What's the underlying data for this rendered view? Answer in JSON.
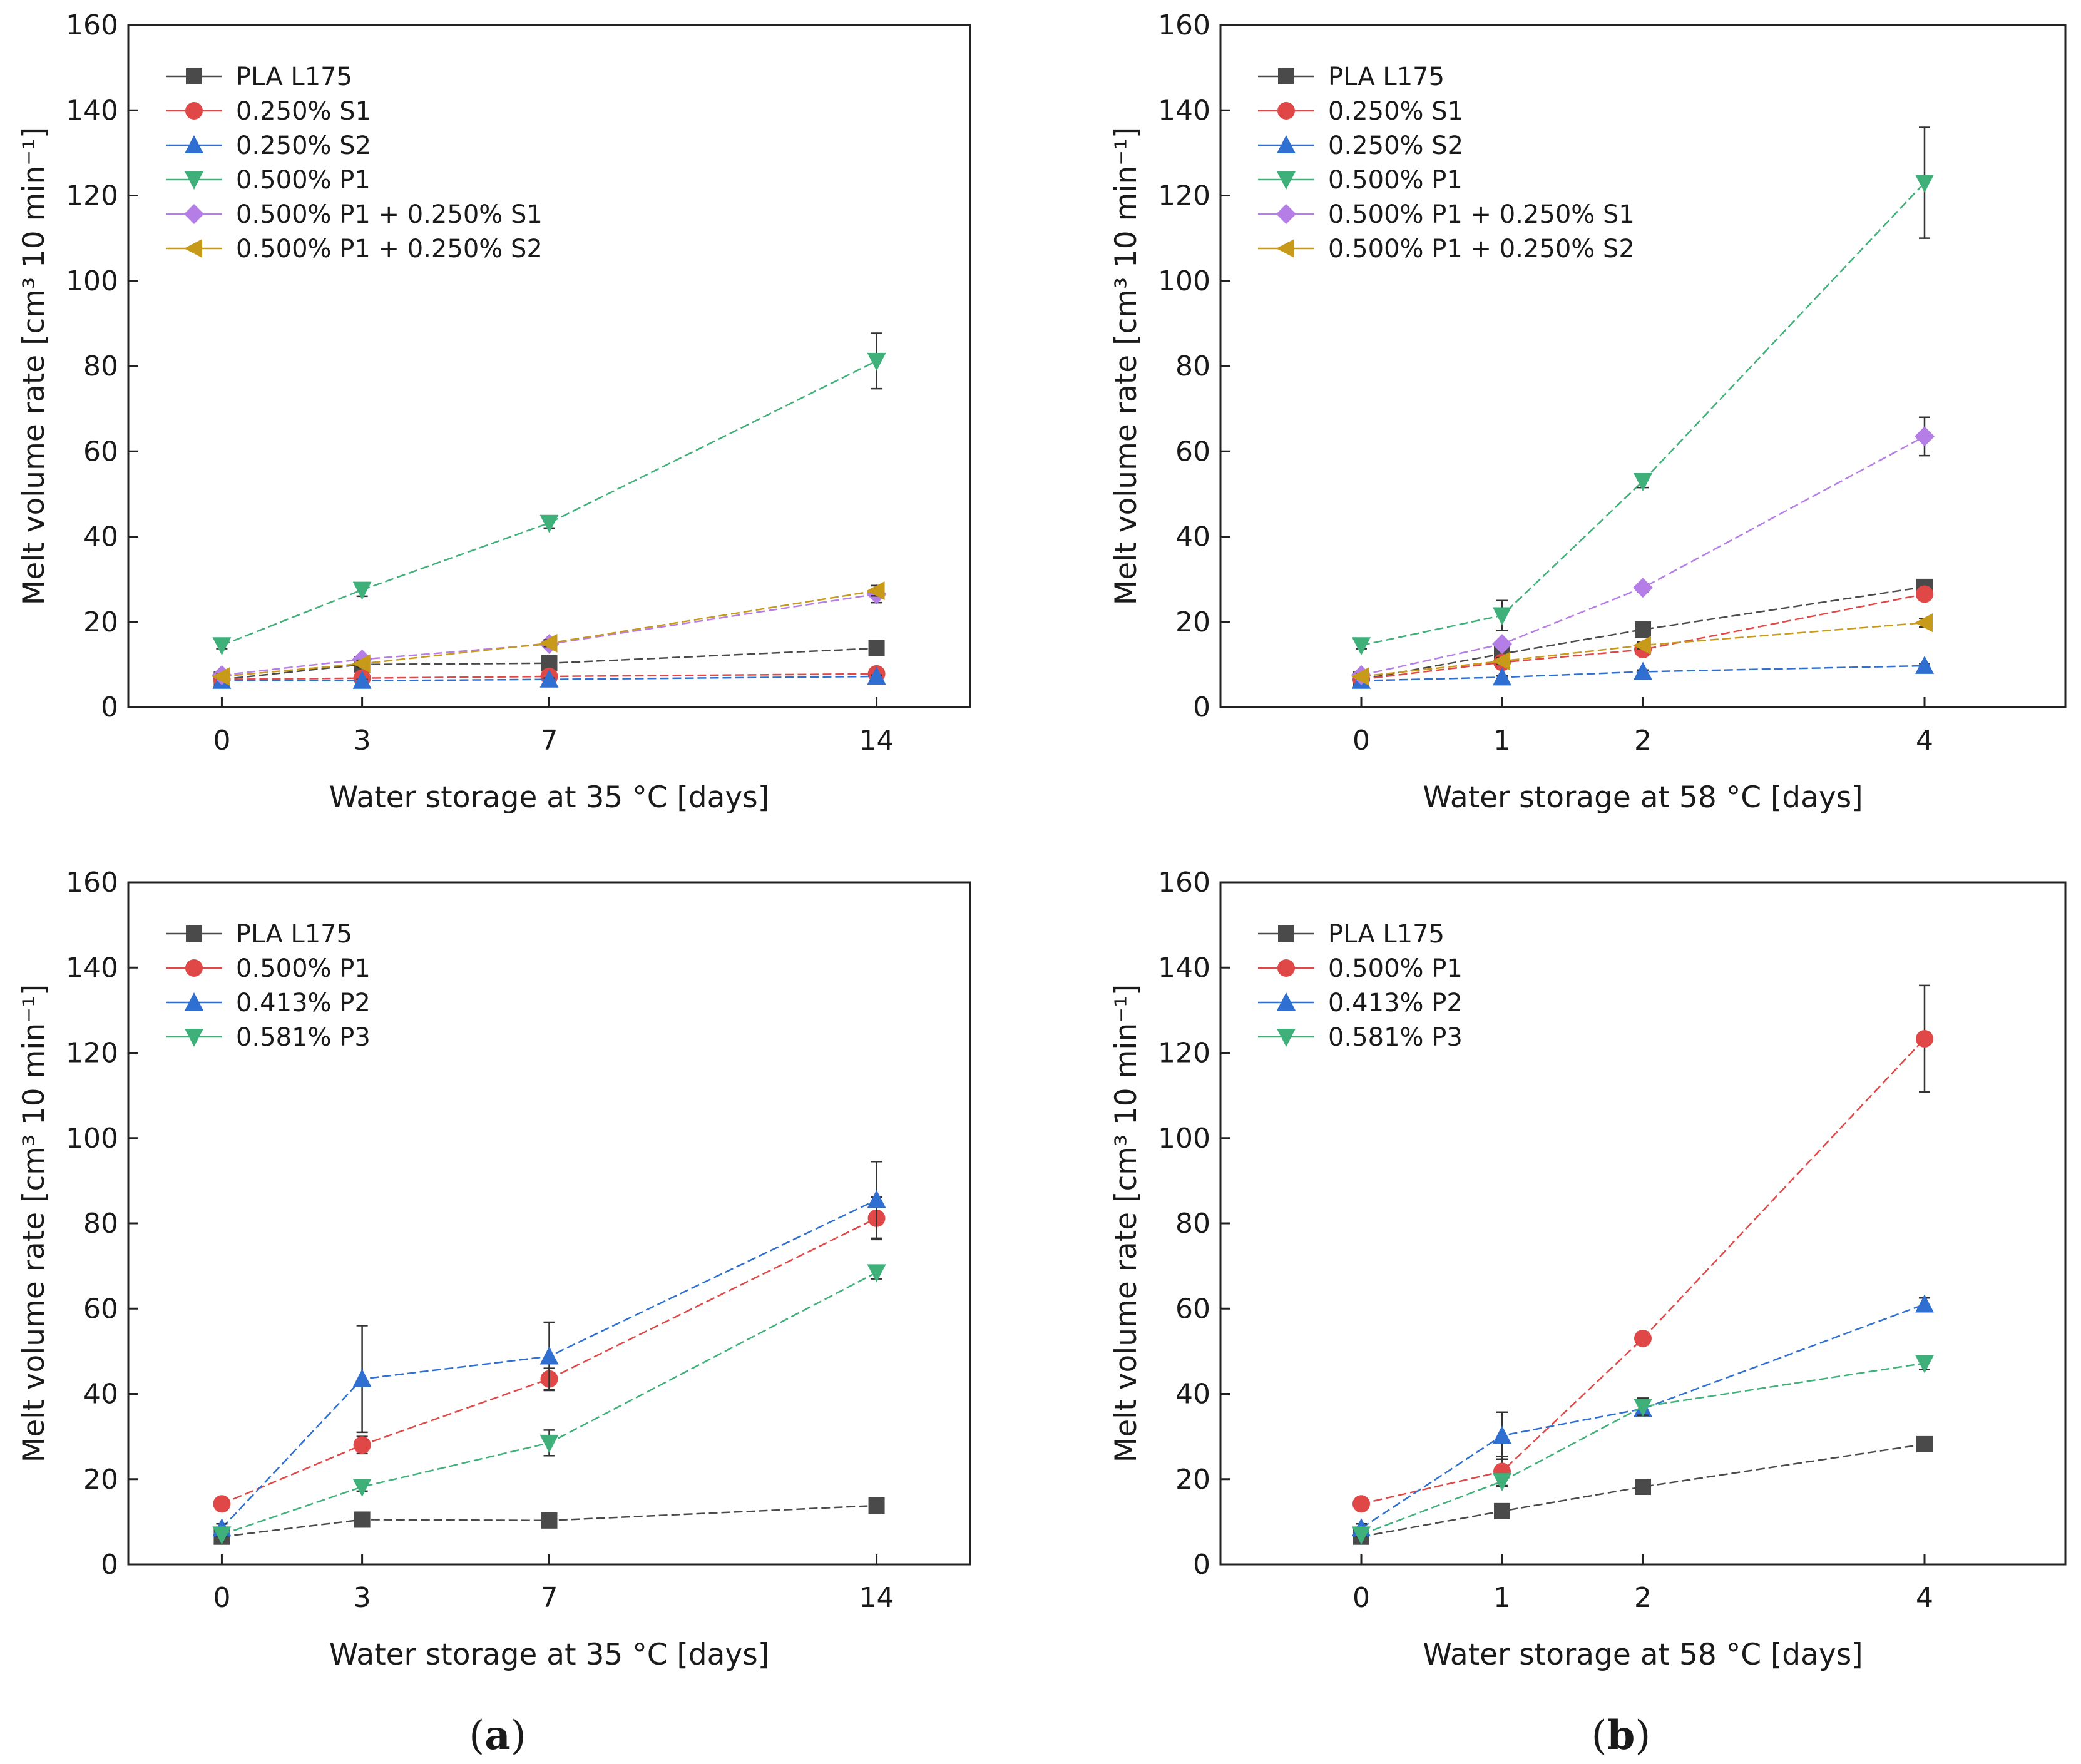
{
  "panel_labels": [
    {
      "prefix": "(",
      "letter": "a",
      "suffix": ")"
    },
    {
      "prefix": "(",
      "letter": "b",
      "suffix": ")"
    }
  ],
  "chart_data": [
    {
      "type": "line",
      "panel": "a-top",
      "xlabel": "Water storage at 35 °C [days]",
      "ylabel": "Melt volume rate [cm³ 10 min⁻¹]",
      "x": [
        0,
        3,
        7,
        14
      ],
      "x_tick_labels": [
        "0",
        "3",
        "7",
        "14"
      ],
      "xlim": [
        -2,
        16
      ],
      "ylim": [
        0,
        160
      ],
      "y_ticks": [
        0,
        20,
        40,
        60,
        80,
        100,
        120,
        140,
        160
      ],
      "legend_position": "top-left",
      "series": [
        {
          "name": "PLA L175",
          "marker": "square",
          "color": "#4a4a4a",
          "values": [
            6.5,
            10,
            10.3,
            13.8
          ],
          "errors": [
            0.5,
            0.8,
            0.8,
            0.8
          ]
        },
        {
          "name": "0.250% S1",
          "marker": "circle",
          "color": "#e04848",
          "values": [
            6.5,
            6.8,
            7.2,
            7.8
          ],
          "errors": [
            0.3,
            0.3,
            0.3,
            0.3
          ]
        },
        {
          "name": "0.250% S2",
          "marker": "triangle-up",
          "color": "#2e6fd1",
          "values": [
            6.2,
            6.2,
            6.5,
            7.2
          ],
          "errors": [
            0.3,
            0.3,
            0.3,
            0.3
          ]
        },
        {
          "name": "0.500% P1",
          "marker": "triangle-down",
          "color": "#3fb079",
          "values": [
            14.5,
            27.5,
            43.2,
            81.2
          ],
          "errors": [
            0.8,
            1.5,
            1.2,
            6.5
          ]
        },
        {
          "name": "0.500% P1 + 0.250% S1",
          "marker": "diamond",
          "color": "#b57ee6",
          "values": [
            7.5,
            11.2,
            14.8,
            26.5
          ],
          "errors": [
            0.5,
            0.8,
            0.8,
            2.0
          ]
        },
        {
          "name": "0.500% P1 + 0.250% S2",
          "marker": "triangle-left",
          "color": "#c89a1a",
          "values": [
            7.2,
            10.2,
            15.0,
            27.3
          ],
          "errors": [
            0.5,
            0.8,
            0.8,
            1.2
          ]
        }
      ]
    },
    {
      "type": "line",
      "panel": "b-top",
      "xlabel": "Water storage at 58 °C [days]",
      "ylabel": "Melt volume rate [cm³ 10 min⁻¹]",
      "x": [
        0,
        1,
        2,
        4
      ],
      "x_tick_labels": [
        "0",
        "1",
        "2",
        "4"
      ],
      "xlim": [
        -1,
        5
      ],
      "ylim": [
        0,
        160
      ],
      "y_ticks": [
        0,
        20,
        40,
        60,
        80,
        100,
        120,
        140,
        160
      ],
      "legend_position": "top-left",
      "series": [
        {
          "name": "PLA L175",
          "marker": "square",
          "color": "#4a4a4a",
          "values": [
            6.5,
            12.5,
            18.2,
            28.2
          ],
          "errors": [
            0.5,
            0.8,
            1.0,
            1.2
          ]
        },
        {
          "name": "0.250% S1",
          "marker": "circle",
          "color": "#e04848",
          "values": [
            6.5,
            10.5,
            13.5,
            26.5
          ],
          "errors": [
            0.3,
            0.6,
            0.8,
            1.5
          ]
        },
        {
          "name": "0.250% S2",
          "marker": "triangle-up",
          "color": "#2e6fd1",
          "values": [
            6.2,
            7.0,
            8.3,
            9.7
          ],
          "errors": [
            0.3,
            0.3,
            0.4,
            0.5
          ]
        },
        {
          "name": "0.500% P1",
          "marker": "triangle-down",
          "color": "#3fb079",
          "values": [
            14.5,
            21.5,
            53.0,
            123.0
          ],
          "errors": [
            0.8,
            3.5,
            1.5,
            13.0
          ]
        },
        {
          "name": "0.500% P1 + 0.250% S1",
          "marker": "diamond",
          "color": "#b57ee6",
          "values": [
            7.5,
            14.8,
            28.0,
            63.5
          ],
          "errors": [
            0.5,
            0.8,
            1.0,
            4.5
          ]
        },
        {
          "name": "0.500% P1 + 0.250% S2",
          "marker": "triangle-left",
          "color": "#c89a1a",
          "values": [
            7.2,
            10.8,
            14.5,
            19.8
          ],
          "errors": [
            0.5,
            0.8,
            0.8,
            1.0
          ]
        }
      ]
    },
    {
      "type": "line",
      "panel": "a-bottom",
      "xlabel": "Water storage at 35 °C [days]",
      "ylabel": "Melt volume rate [cm³ 10 min⁻¹]",
      "x": [
        0,
        3,
        7,
        14
      ],
      "x_tick_labels": [
        "0",
        "3",
        "7",
        "14"
      ],
      "xlim": [
        -2,
        16
      ],
      "ylim": [
        0,
        160
      ],
      "y_ticks": [
        0,
        20,
        40,
        60,
        80,
        100,
        120,
        140,
        160
      ],
      "legend_position": "top-left",
      "series": [
        {
          "name": "PLA L175",
          "marker": "square",
          "color": "#4a4a4a",
          "values": [
            6.5,
            10.5,
            10.3,
            13.8
          ],
          "errors": [
            0.5,
            0.8,
            0.8,
            0.8
          ]
        },
        {
          "name": "0.500% P1",
          "marker": "circle",
          "color": "#e04848",
          "values": [
            14.2,
            28.0,
            43.5,
            81.2
          ],
          "errors": [
            0.8,
            2.0,
            2.5,
            5.0
          ]
        },
        {
          "name": "0.413% P2",
          "marker": "triangle-up",
          "color": "#2e6fd1",
          "values": [
            8.5,
            43.5,
            48.8,
            85.5
          ],
          "errors": [
            1.0,
            12.5,
            8.0,
            9.0
          ]
        },
        {
          "name": "0.581% P3",
          "marker": "triangle-down",
          "color": "#3fb079",
          "values": [
            7.0,
            18.2,
            28.5,
            68.5
          ],
          "errors": [
            0.5,
            1.0,
            3.0,
            1.5
          ]
        }
      ]
    },
    {
      "type": "line",
      "panel": "b-bottom",
      "xlabel": "Water storage at 58 °C [days]",
      "ylabel": "Melt volume rate [cm³ 10 min⁻¹]",
      "x": [
        0,
        1,
        2,
        4
      ],
      "x_tick_labels": [
        "0",
        "1",
        "2",
        "4"
      ],
      "xlim": [
        -1,
        5
      ],
      "ylim": [
        0,
        160
      ],
      "y_ticks": [
        0,
        20,
        40,
        60,
        80,
        100,
        120,
        140,
        160
      ],
      "legend_position": "top-left",
      "series": [
        {
          "name": "PLA L175",
          "marker": "square",
          "color": "#4a4a4a",
          "values": [
            6.5,
            12.5,
            18.2,
            28.2
          ],
          "errors": [
            0.5,
            0.8,
            0.8,
            0.8
          ]
        },
        {
          "name": "0.500% P1",
          "marker": "circle",
          "color": "#e04848",
          "values": [
            14.2,
            21.8,
            53.0,
            123.3
          ],
          "errors": [
            0.8,
            3.5,
            1.5,
            12.5
          ]
        },
        {
          "name": "0.413% P2",
          "marker": "triangle-up",
          "color": "#2e6fd1",
          "values": [
            8.5,
            30.2,
            36.5,
            61.0
          ],
          "errors": [
            1.0,
            5.5,
            1.5,
            1.5
          ]
        },
        {
          "name": "0.581% P3",
          "marker": "triangle-down",
          "color": "#3fb079",
          "values": [
            7.0,
            19.5,
            37.0,
            47.2
          ],
          "errors": [
            0.5,
            1.0,
            2.0,
            1.5
          ]
        }
      ]
    }
  ]
}
